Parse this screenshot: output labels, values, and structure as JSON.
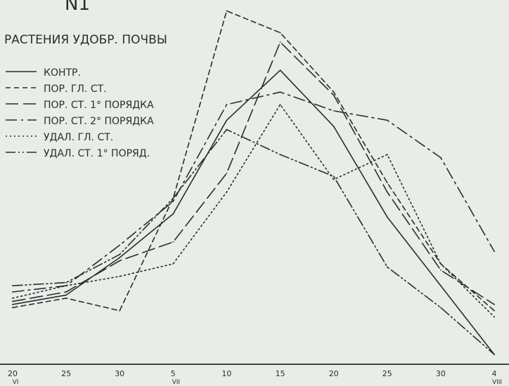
{
  "chart_data": {
    "type": "line",
    "title": "N1",
    "subtitle": "РАСТЕНИЯ УДОБР. ПОЧВЫ",
    "xlabel": "",
    "ylabel": "",
    "x_ticks": [
      {
        "top": "20",
        "bottom": "VI"
      },
      {
        "top": "25",
        "bottom": ""
      },
      {
        "top": "30",
        "bottom": ""
      },
      {
        "top": "5",
        "bottom": "VII"
      },
      {
        "top": "10",
        "bottom": ""
      },
      {
        "top": "15",
        "bottom": ""
      },
      {
        "top": "20",
        "bottom": ""
      },
      {
        "top": "25",
        "bottom": ""
      },
      {
        "top": "30",
        "bottom": ""
      },
      {
        "top": "4",
        "bottom": "VIII"
      }
    ],
    "ylim": [
      0,
      100
    ],
    "grid": false,
    "legend_position": "top-left",
    "series": [
      {
        "name": "КОНТР.",
        "dash": "solid",
        "values": [
          16,
          19,
          31,
          45,
          75,
          91,
          73,
          44,
          22,
          0
        ]
      },
      {
        "name": "ПОР. ГЛ. СТ.",
        "dash": "dash-short",
        "values": [
          15,
          18,
          14,
          50,
          110,
          103,
          84,
          55,
          29,
          14
        ]
      },
      {
        "name": "ПОР. СТ. 1° ПОРЯДКА",
        "dash": "dash-long",
        "values": [
          17,
          20,
          30,
          36,
          58,
          100,
          83,
          52,
          27,
          16
        ]
      },
      {
        "name": "ПОР. СТ. 2° ПОРЯДКА",
        "dash": "dash-dot",
        "values": [
          20,
          22,
          35,
          49,
          80,
          84,
          78,
          75,
          63,
          33
        ]
      },
      {
        "name": "УДАЛ. ГЛ. СТ.",
        "dash": "dot",
        "values": [
          18,
          22,
          25,
          29,
          52,
          80,
          56,
          64,
          29,
          12
        ]
      },
      {
        "name": "УДАЛ. СТ. 1° ПОРЯД.",
        "dash": "dash-dot-dot",
        "values": [
          22,
          23,
          32,
          50,
          72,
          64,
          57,
          28,
          15,
          0
        ]
      }
    ]
  },
  "colors": {
    "background": "#e9ece7",
    "ink": "#2a2d2f"
  }
}
